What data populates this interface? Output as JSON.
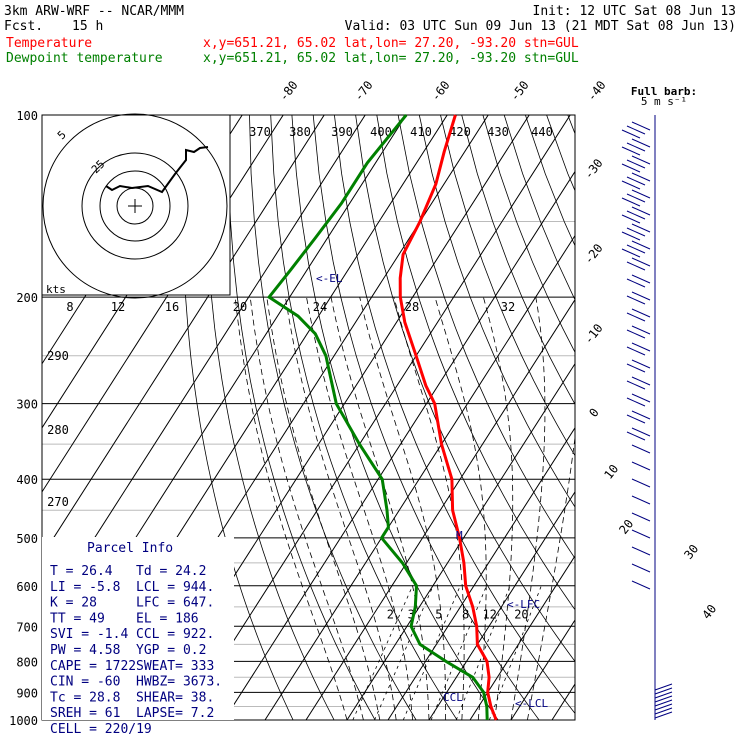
{
  "header": {
    "model": "3km ARW-WRF -- NCAR/MMM",
    "init": "Init: 12 UTC Sat 08 Jun 13",
    "fcst_label": "Fcst.",
    "fcst_value": "15 h",
    "valid": "Valid: 03 UTC Sun 09 Jun 13 (21 MDT Sat 08 Jun 13)",
    "temperature_label": "Temperature",
    "dewpoint_label": "Dewpoint temperature",
    "location_line": "x,y=651.21, 65.02   lat,lon= 27.20, -93.20  stn=GUL",
    "barb_label_1": "Full barb:",
    "barb_label_2": "5 m s⁻¹"
  },
  "colors": {
    "temperature": "#ff0000",
    "dewpoint": "#008000",
    "annotation": "#000080",
    "grid": "#000000"
  },
  "parcel_info": {
    "title": "Parcel Info",
    "rows": [
      [
        "T   =   26.4",
        "Td  =   24.2"
      ],
      [
        "LI  =   -5.8",
        "LCL =   944."
      ],
      [
        "K   =     28",
        "LFC =   647."
      ],
      [
        "TT  =     49",
        "EL  =    186"
      ],
      [
        "SVI =   -1.4",
        "CCL =   922."
      ],
      [
        "PW  =   4.58",
        "YGP =    0.2"
      ],
      [
        "CAPE =  1722",
        "SWEAT=   333"
      ],
      [
        "CIN  =   -60",
        "HWBZ= 3673."
      ],
      [
        "Tc  =   28.8",
        "SHEAR=   38."
      ],
      [
        "SREH =    61",
        "LAPSE=   7.2"
      ],
      [
        "CELL = 220/19",
        ""
      ]
    ]
  },
  "hodograph": {
    "kts_label": "kts",
    "ring_labels": [
      "5",
      "25"
    ]
  },
  "annotations": {
    "el": "<-EL",
    "lfc": "<-LFC",
    "lcl": "<-LCL",
    "ccl": "CCL",
    "m": "M"
  },
  "chart_data": {
    "type": "line",
    "title": "",
    "xlabel": "",
    "ylabel": "",
    "y_scale": "log-pressure",
    "ylim": [
      1000,
      100
    ],
    "pressure_ticks": [
      100,
      200,
      300,
      400,
      500,
      600,
      700,
      800,
      900,
      1000
    ],
    "pressure_tick_labels": [
      "100",
      "200",
      "300",
      "400",
      "500",
      "600",
      "700",
      "800",
      "900",
      "1000"
    ],
    "isotherm_labels_top": [
      "-80",
      "-70",
      "-60",
      "-50",
      "-40"
    ],
    "isotherm_labels_right": [
      "-30",
      "-20",
      "-10",
      "0",
      "10",
      "20",
      "30",
      "40"
    ],
    "theta_labels_top": [
      "370",
      "380",
      "390",
      "400",
      "410",
      "420",
      "430",
      "440"
    ],
    "theta_labels_left": [
      "290",
      "280",
      "270"
    ],
    "hodo_speed_labels": [
      "8",
      "12",
      "16",
      "20",
      "24",
      "28",
      "32"
    ],
    "mixing_ratio_labels": [
      "2",
      "3",
      "5",
      "8",
      "12",
      "20"
    ],
    "series": [
      {
        "name": "Temperature",
        "points": [
          [
            100,
            -78
          ],
          [
            115,
            -75
          ],
          [
            130,
            -72
          ],
          [
            150,
            -70
          ],
          [
            170,
            -69
          ],
          [
            186,
            -66
          ],
          [
            200,
            -63
          ],
          [
            220,
            -58
          ],
          [
            250,
            -50
          ],
          [
            280,
            -43
          ],
          [
            300,
            -38
          ],
          [
            350,
            -30
          ],
          [
            400,
            -22
          ],
          [
            450,
            -17
          ],
          [
            500,
            -11
          ],
          [
            550,
            -6
          ],
          [
            600,
            -2
          ],
          [
            650,
            3
          ],
          [
            700,
            7
          ],
          [
            750,
            10
          ],
          [
            800,
            15
          ],
          [
            850,
            18
          ],
          [
            900,
            20
          ],
          [
            950,
            23
          ],
          [
            1000,
            26.4
          ]
        ]
      },
      {
        "name": "Dewpoint temperature",
        "points": [
          [
            100,
            -90
          ],
          [
            120,
            -92
          ],
          [
            140,
            -92
          ],
          [
            160,
            -93
          ],
          [
            180,
            -94
          ],
          [
            200,
            -95
          ],
          [
            215,
            -85
          ],
          [
            230,
            -78
          ],
          [
            250,
            -72
          ],
          [
            300,
            -62
          ],
          [
            350,
            -50
          ],
          [
            400,
            -39
          ],
          [
            450,
            -33
          ],
          [
            480,
            -30
          ],
          [
            500,
            -30
          ],
          [
            550,
            -21
          ],
          [
            600,
            -14
          ],
          [
            650,
            -11
          ],
          [
            700,
            -9
          ],
          [
            750,
            -4
          ],
          [
            800,
            5
          ],
          [
            850,
            14
          ],
          [
            900,
            19
          ],
          [
            950,
            22
          ],
          [
            1000,
            24.2
          ]
        ]
      }
    ]
  }
}
